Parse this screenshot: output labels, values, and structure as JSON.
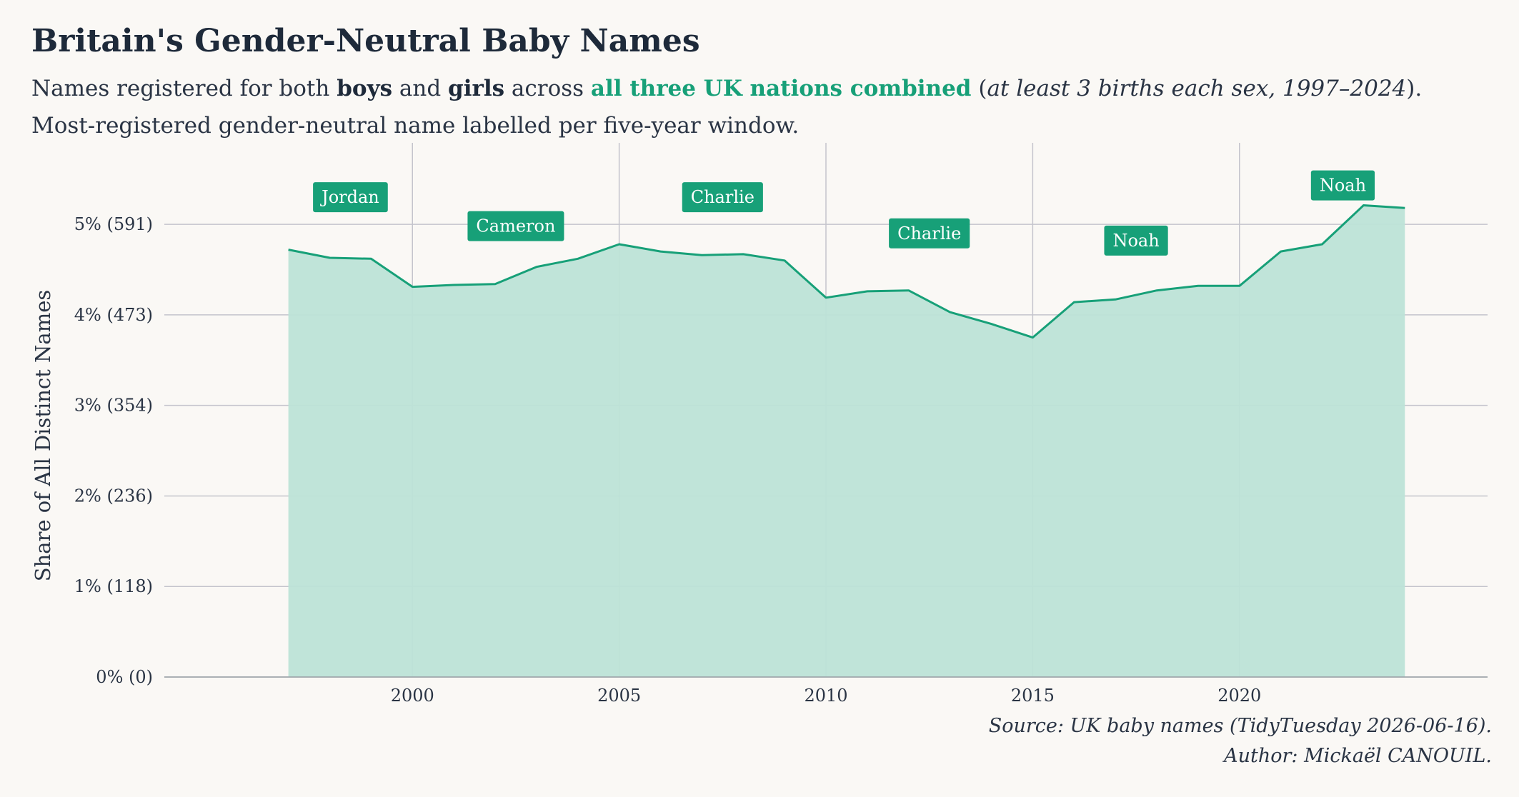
{
  "header": {
    "title": "Britain's Gender-Neutral Baby Names",
    "subtitle": {
      "line1_a": "Names registered for both ",
      "line1_boys": "boys",
      "line1_b": " and ",
      "line1_girls": "girls",
      "line1_c": " across ",
      "line1_accent": "all three UK nations combined",
      "line1_d": " (",
      "line1_italic": "at least 3 births each sex, 1997–2024",
      "line1_e": ").",
      "line2": "Most-registered gender-neutral name labelled per five-year window."
    }
  },
  "caption": {
    "source": "Source: UK baby names (TidyTuesday 2026-06-16).",
    "author": "Author: Mickaël CANOUIL."
  },
  "colors": {
    "accent": "#17a078",
    "area_fill": "#bde3d7",
    "grid": "#c4c4cc",
    "background": "#faf8f5"
  },
  "chart_data": {
    "type": "area",
    "ylabel": "Share of All Distinct Names",
    "xlabel": "",
    "xlim": [
      1994,
      2026
    ],
    "ylim": [
      0,
      5.9
    ],
    "x_ticks": [
      2000,
      2005,
      2010,
      2015,
      2020
    ],
    "y_ticks": [
      {
        "value": 0,
        "label": "0% (0)"
      },
      {
        "value": 1,
        "label": "1% (118)"
      },
      {
        "value": 2,
        "label": "2% (236)"
      },
      {
        "value": 3,
        "label": "3% (354)"
      },
      {
        "value": 4,
        "label": "4% (473)"
      },
      {
        "value": 5,
        "label": "5% (591)"
      }
    ],
    "grid": true,
    "x": [
      1997,
      1998,
      1999,
      2000,
      2001,
      2002,
      2003,
      2004,
      2005,
      2006,
      2007,
      2008,
      2009,
      2010,
      2011,
      2012,
      2013,
      2014,
      2015,
      2016,
      2017,
      2018,
      2019,
      2020,
      2021,
      2022,
      2023,
      2024
    ],
    "series": [
      {
        "values": [
          4.72,
          4.63,
          4.62,
          4.31,
          4.33,
          4.34,
          4.53,
          4.62,
          4.78,
          4.7,
          4.66,
          4.67,
          4.6,
          4.19,
          4.26,
          4.27,
          4.03,
          3.9,
          3.75,
          4.14,
          4.17,
          4.27,
          4.32,
          4.32,
          4.7,
          4.78,
          5.21,
          5.18
        ]
      }
    ],
    "annotations": [
      {
        "x": 1998.5,
        "y": 5.3,
        "label": "Jordan"
      },
      {
        "x": 2002.5,
        "y": 4.98,
        "label": "Cameron"
      },
      {
        "x": 2007.5,
        "y": 5.3,
        "label": "Charlie"
      },
      {
        "x": 2012.5,
        "y": 4.9,
        "label": "Charlie"
      },
      {
        "x": 2017.5,
        "y": 4.82,
        "label": "Noah"
      },
      {
        "x": 2022.5,
        "y": 5.43,
        "label": "Noah"
      }
    ]
  }
}
